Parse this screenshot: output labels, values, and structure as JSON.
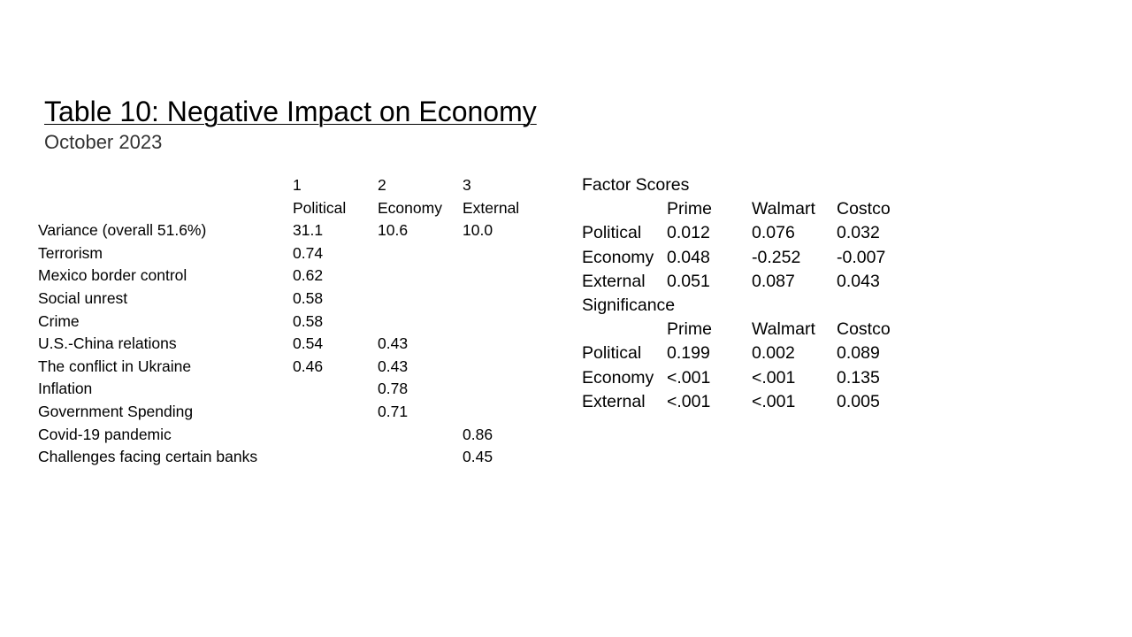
{
  "title": "Table 10: Negative Impact on Economy",
  "subtitle": "October 2023",
  "loadings": {
    "header_numbers": [
      "1",
      "2",
      "3"
    ],
    "header_names": [
      "Political",
      "Economy",
      "External"
    ],
    "rows": [
      {
        "label": "Variance (overall 51.6%)",
        "values": [
          "31.1",
          "10.6",
          "10.0"
        ]
      },
      {
        "label": "Terrorism",
        "values": [
          "0.74",
          "",
          ""
        ]
      },
      {
        "label": "Mexico border control",
        "values": [
          "0.62",
          "",
          ""
        ]
      },
      {
        "label": "Social unrest",
        "values": [
          "0.58",
          "",
          ""
        ]
      },
      {
        "label": "Crime",
        "values": [
          "0.58",
          "",
          ""
        ]
      },
      {
        "label": "U.S.-China relations",
        "values": [
          "0.54",
          "0.43",
          ""
        ]
      },
      {
        "label": "The conflict in Ukraine",
        "values": [
          "0.46",
          "0.43",
          ""
        ]
      },
      {
        "label": "Inflation",
        "values": [
          "",
          "0.78",
          ""
        ]
      },
      {
        "label": "Government Spending",
        "values": [
          "",
          "0.71",
          ""
        ]
      },
      {
        "label": "Covid-19 pandemic",
        "values": [
          "",
          "",
          "0.86"
        ]
      },
      {
        "label": "Challenges facing certain banks",
        "values": [
          "",
          "",
          "0.45"
        ]
      }
    ]
  },
  "factor_scores": {
    "heading": "Factor Scores",
    "columns": [
      "Prime",
      "Walmart",
      "Costco"
    ],
    "rows": [
      {
        "label": "Political",
        "values": [
          "0.012",
          "0.076",
          "0.032"
        ]
      },
      {
        "label": "Economy",
        "values": [
          "0.048",
          "-0.252",
          "-0.007"
        ]
      },
      {
        "label": "External",
        "values": [
          "0.051",
          "0.087",
          "0.043"
        ]
      }
    ]
  },
  "significance": {
    "heading": "Significance",
    "columns": [
      "Prime",
      "Walmart",
      "Costco"
    ],
    "rows": [
      {
        "label": "Political",
        "values": [
          "0.199",
          "0.002",
          "0.089"
        ]
      },
      {
        "label": "Economy",
        "values": [
          "<.001",
          "<.001",
          "0.135"
        ]
      },
      {
        "label": "External",
        "values": [
          "<.001",
          "<.001",
          "0.005"
        ]
      }
    ]
  }
}
